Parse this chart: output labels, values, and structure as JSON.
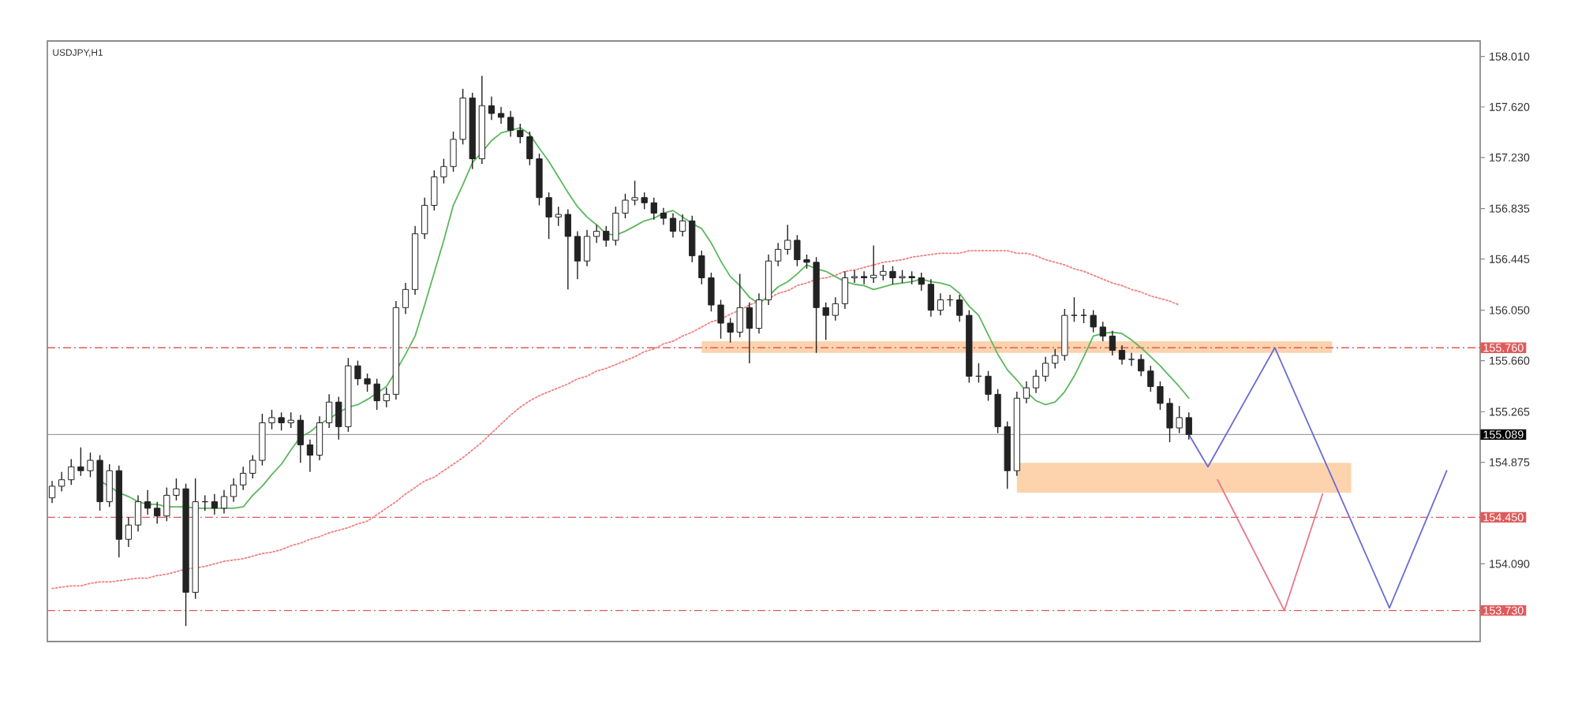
{
  "chart_data": {
    "type": "candlestick",
    "title": "USDJPY,H1",
    "color": "#222222",
    "categories": [
      null,
      null,
      null,
      null,
      null,
      null,
      null,
      null,
      null,
      null,
      null,
      null,
      null,
      null,
      null,
      null,
      null,
      null,
      null,
      null,
      null,
      null,
      null,
      null,
      null,
      null,
      null,
      null,
      null,
      null,
      null,
      null,
      null,
      null,
      null,
      null,
      null,
      null,
      null,
      null,
      null,
      null,
      null,
      null,
      null,
      null,
      null,
      null,
      null,
      null,
      null,
      null,
      null,
      null,
      null,
      null,
      null,
      null,
      null,
      null,
      null,
      null,
      null,
      null,
      null,
      null,
      null,
      null,
      null,
      null,
      null,
      null,
      null,
      null,
      null,
      null,
      null,
      null,
      null,
      null,
      null,
      null,
      null,
      null,
      null,
      null,
      null,
      null,
      null,
      null,
      null,
      null,
      null,
      null,
      null,
      null,
      null,
      null,
      null,
      null,
      null,
      null,
      null,
      null,
      null,
      null,
      null,
      null,
      null,
      null,
      null,
      null,
      null,
      null,
      null,
      null,
      null,
      null,
      null,
      null,
      null,
      null,
      null,
      null,
      null,
      null,
      null,
      null,
      null,
      null,
      null,
      null,
      null,
      null,
      null,
      null,
      null,
      null,
      null,
      null,
      null,
      null,
      null,
      null,
      null,
      null,
      null,
      null,
      null,
      null
    ],
    "ohlc": [
      [
        154.6,
        154.73,
        154.56,
        154.69
      ],
      [
        154.69,
        154.8,
        154.65,
        154.74
      ],
      [
        154.74,
        154.9,
        154.7,
        154.84
      ],
      [
        154.84,
        154.99,
        154.77,
        154.81
      ],
      [
        154.81,
        154.95,
        154.76,
        154.89
      ],
      [
        154.89,
        154.93,
        154.5,
        154.57
      ],
      [
        154.57,
        154.86,
        154.53,
        154.81
      ],
      [
        154.81,
        154.85,
        154.14,
        154.28
      ],
      [
        154.28,
        154.45,
        154.22,
        154.39
      ],
      [
        154.39,
        154.62,
        154.34,
        154.57
      ],
      [
        154.57,
        154.66,
        154.47,
        154.52
      ],
      [
        154.52,
        154.57,
        154.4,
        154.46
      ],
      [
        154.46,
        154.68,
        154.42,
        154.62
      ],
      [
        154.62,
        154.75,
        154.58,
        154.67
      ],
      [
        154.67,
        154.71,
        153.61,
        153.87
      ],
      [
        153.87,
        154.75,
        153.82,
        154.57
      ],
      [
        154.57,
        154.62,
        154.5,
        154.57
      ],
      [
        154.57,
        154.63,
        154.47,
        154.52
      ],
      [
        154.52,
        154.66,
        154.48,
        154.61
      ],
      [
        154.61,
        154.75,
        154.57,
        154.7
      ],
      [
        154.7,
        154.84,
        154.66,
        154.79
      ],
      [
        154.79,
        154.93,
        154.75,
        154.89
      ],
      [
        154.89,
        155.25,
        154.85,
        155.18
      ],
      [
        155.18,
        155.28,
        155.13,
        155.22
      ],
      [
        155.22,
        155.26,
        155.12,
        155.18
      ],
      [
        155.18,
        155.26,
        155.14,
        155.2
      ],
      [
        155.2,
        155.24,
        154.87,
        155.01
      ],
      [
        155.01,
        155.05,
        154.8,
        154.93
      ],
      [
        154.93,
        155.23,
        154.89,
        155.18
      ],
      [
        155.18,
        155.4,
        155.14,
        155.34
      ],
      [
        155.34,
        155.38,
        155.05,
        155.15
      ],
      [
        155.15,
        155.68,
        155.11,
        155.62
      ],
      [
        155.62,
        155.66,
        155.47,
        155.52
      ],
      [
        155.52,
        155.56,
        155.42,
        155.48
      ],
      [
        155.48,
        155.52,
        155.28,
        155.35
      ],
      [
        155.35,
        155.45,
        155.3,
        155.4
      ],
      [
        155.4,
        156.12,
        155.36,
        156.07
      ],
      [
        156.07,
        156.26,
        156.02,
        156.21
      ],
      [
        156.21,
        156.7,
        156.17,
        156.64
      ],
      [
        156.64,
        156.92,
        156.6,
        156.86
      ],
      [
        156.86,
        157.13,
        156.82,
        157.08
      ],
      [
        157.08,
        157.22,
        157.03,
        157.16
      ],
      [
        157.16,
        157.43,
        157.12,
        157.37
      ],
      [
        157.37,
        157.76,
        157.33,
        157.69
      ],
      [
        157.69,
        157.73,
        157.14,
        157.22
      ],
      [
        157.22,
        157.86,
        157.18,
        157.63
      ],
      [
        157.63,
        157.7,
        157.52,
        157.57
      ],
      [
        157.57,
        157.62,
        157.49,
        157.54
      ],
      [
        157.54,
        157.59,
        157.39,
        157.44
      ],
      [
        157.44,
        157.49,
        157.34,
        157.39
      ],
      [
        157.39,
        157.43,
        157.17,
        157.22
      ],
      [
        157.22,
        157.26,
        156.86,
        156.92
      ],
      [
        156.92,
        156.96,
        156.6,
        156.77
      ],
      [
        156.77,
        156.85,
        156.7,
        156.79
      ],
      [
        156.79,
        156.83,
        156.21,
        156.62
      ],
      [
        156.62,
        156.66,
        156.29,
        156.43
      ],
      [
        156.43,
        156.67,
        156.39,
        156.62
      ],
      [
        156.62,
        156.71,
        156.57,
        156.66
      ],
      [
        156.66,
        156.7,
        156.54,
        156.59
      ],
      [
        156.59,
        156.85,
        156.55,
        156.8
      ],
      [
        156.8,
        156.95,
        156.76,
        156.9
      ],
      [
        156.9,
        157.05,
        156.86,
        156.92
      ],
      [
        156.92,
        156.96,
        156.83,
        156.88
      ],
      [
        156.88,
        156.92,
        156.75,
        156.8
      ],
      [
        156.8,
        156.84,
        156.71,
        156.76
      ],
      [
        156.76,
        156.8,
        156.61,
        156.66
      ],
      [
        156.66,
        156.79,
        156.62,
        156.74
      ],
      [
        156.74,
        156.78,
        156.42,
        156.47
      ],
      [
        156.47,
        156.51,
        156.25,
        156.3
      ],
      [
        156.3,
        156.34,
        156.04,
        156.09
      ],
      [
        156.09,
        156.13,
        155.83,
        155.95
      ],
      [
        155.95,
        155.99,
        155.8,
        155.88
      ],
      [
        155.88,
        156.33,
        155.84,
        156.07
      ],
      [
        156.07,
        156.11,
        155.64,
        155.91
      ],
      [
        155.91,
        156.18,
        155.87,
        156.13
      ],
      [
        156.13,
        156.48,
        156.09,
        156.43
      ],
      [
        156.43,
        156.57,
        156.39,
        156.52
      ],
      [
        156.52,
        156.71,
        156.48,
        156.59
      ],
      [
        156.59,
        156.63,
        156.39,
        156.44
      ],
      [
        156.44,
        156.48,
        156.37,
        156.42
      ],
      [
        156.42,
        156.46,
        155.72,
        156.07
      ],
      [
        156.07,
        156.11,
        155.82,
        156.01
      ],
      [
        156.01,
        156.15,
        155.97,
        156.1
      ],
      [
        156.1,
        156.35,
        156.06,
        156.3
      ],
      [
        156.3,
        156.36,
        156.26,
        156.31
      ],
      [
        156.31,
        156.35,
        156.25,
        156.3
      ],
      [
        156.3,
        156.55,
        156.26,
        156.32
      ],
      [
        156.32,
        156.4,
        156.28,
        156.35
      ],
      [
        156.35,
        156.39,
        156.25,
        156.3
      ],
      [
        156.3,
        156.36,
        156.26,
        156.31
      ],
      [
        156.31,
        156.35,
        156.25,
        156.3
      ],
      [
        156.3,
        156.34,
        156.2,
        156.25
      ],
      [
        156.25,
        156.29,
        156.0,
        156.05
      ],
      [
        156.05,
        156.18,
        156.01,
        156.13
      ],
      [
        156.13,
        156.17,
        156.08,
        156.13
      ],
      [
        156.13,
        156.17,
        155.96,
        156.01
      ],
      [
        156.01,
        156.05,
        155.49,
        155.54
      ],
      [
        155.54,
        155.64,
        155.49,
        155.54
      ],
      [
        155.54,
        155.58,
        155.35,
        155.4
      ],
      [
        155.4,
        155.44,
        155.1,
        155.15
      ],
      [
        155.15,
        155.19,
        154.67,
        154.81
      ],
      [
        154.81,
        155.42,
        154.77,
        155.37
      ],
      [
        155.37,
        155.5,
        155.33,
        155.45
      ],
      [
        155.45,
        155.59,
        155.41,
        155.54
      ],
      [
        155.54,
        155.69,
        155.5,
        155.64
      ],
      [
        155.64,
        155.75,
        155.6,
        155.7
      ],
      [
        155.7,
        156.06,
        155.66,
        156.01
      ],
      [
        156.01,
        156.15,
        155.96,
        156.01
      ],
      [
        156.01,
        156.06,
        155.95,
        156.01
      ],
      [
        156.01,
        156.05,
        155.88,
        155.92
      ],
      [
        155.92,
        155.96,
        155.81,
        155.85
      ],
      [
        155.85,
        155.89,
        155.7,
        155.74
      ],
      [
        155.74,
        155.78,
        155.63,
        155.67
      ],
      [
        155.67,
        155.72,
        155.62,
        155.67
      ],
      [
        155.67,
        155.71,
        155.54,
        155.58
      ],
      [
        155.58,
        155.62,
        155.42,
        155.46
      ],
      [
        155.46,
        155.5,
        155.28,
        155.33
      ],
      [
        155.33,
        155.37,
        155.03,
        155.14
      ],
      [
        155.14,
        155.31,
        155.1,
        155.22
      ],
      [
        155.22,
        155.26,
        155.05,
        155.09
      ],
      null,
      null,
      null,
      null,
      null,
      null,
      null,
      null,
      null,
      null,
      null,
      null,
      null,
      null,
      null,
      null,
      null,
      null,
      null,
      null,
      null,
      null,
      null,
      null,
      null,
      null,
      null,
      null,
      null,
      null
    ],
    "series": [
      {
        "type": "area",
        "color": "#fcd3ad",
        "values": [
          null,
          null,
          null,
          null,
          null,
          null,
          null,
          null,
          null,
          null,
          null,
          null,
          null,
          null,
          null,
          null,
          null,
          null,
          null,
          null,
          null,
          null,
          null,
          null,
          null,
          null,
          null,
          null,
          null,
          null,
          null,
          null,
          null,
          null,
          null,
          null,
          null,
          null,
          null,
          null,
          null,
          null,
          null,
          null,
          null,
          null,
          null,
          null,
          null,
          null,
          null,
          null,
          null,
          null,
          null,
          null,
          null,
          null,
          null,
          null,
          null,
          null,
          null,
          null,
          null,
          null,
          null,
          null,
          null,
          null,
          null,
          null,
          null,
          null,
          null,
          null,
          null,
          null,
          null,
          null,
          null,
          null,
          null,
          null,
          null,
          null,
          null,
          null,
          null,
          null,
          null,
          null,
          null,
          null,
          null,
          null,
          null,
          null,
          null,
          null,
          null,
          null,
          null,
          null,
          null,
          null,
          null,
          null,
          null,
          null,
          null,
          null,
          null,
          null,
          null,
          null,
          null,
          null,
          null,
          null,
          null,
          null,
          null,
          null,
          null,
          null,
          null,
          null,
          null,
          null,
          null,
          null,
          null,
          null,
          null,
          null,
          null,
          null,
          null,
          null,
          null,
          null,
          null,
          null,
          null,
          null,
          null,
          null,
          null,
          null
        ],
        "upper": [
          null,
          null,
          null,
          null,
          null,
          null,
          null,
          null,
          null,
          null,
          null,
          null,
          null,
          null,
          null,
          null,
          null,
          null,
          null,
          null,
          null,
          null,
          null,
          null,
          null,
          null,
          null,
          null,
          null,
          null,
          null,
          null,
          null,
          null,
          null,
          null,
          null,
          null,
          null,
          null,
          null,
          null,
          null,
          null,
          null,
          null,
          null,
          null,
          null,
          null,
          null,
          null,
          null,
          null,
          null,
          null,
          null,
          null,
          null,
          null,
          null,
          null,
          null,
          null,
          null,
          null,
          null,
          null,
          155.81,
          null,
          null,
          null,
          null,
          null,
          null,
          null,
          null,
          null,
          null,
          null,
          null,
          null,
          null,
          null,
          null,
          null,
          null,
          null,
          null,
          null,
          null,
          null,
          null,
          null,
          null,
          null,
          null,
          null,
          null,
          null,
          null,
          null,
          null,
          null,
          null,
          null,
          null,
          null,
          null,
          null,
          null,
          null,
          null,
          null,
          null,
          null,
          null,
          null,
          null,
          null,
          null,
          null,
          null,
          null,
          null,
          null,
          null,
          null,
          null,
          null,
          null,
          null,
          null,
          null,
          155.81,
          null,
          null,
          null,
          null,
          null,
          null,
          null,
          null,
          null,
          null,
          null,
          null,
          null,
          null,
          null
        ],
        "lower": [
          null,
          null,
          null,
          null,
          null,
          null,
          null,
          null,
          null,
          null,
          null,
          null,
          null,
          null,
          null,
          null,
          null,
          null,
          null,
          null,
          null,
          null,
          null,
          null,
          null,
          null,
          null,
          null,
          null,
          null,
          null,
          null,
          null,
          null,
          null,
          null,
          null,
          null,
          null,
          null,
          null,
          null,
          null,
          null,
          null,
          null,
          null,
          null,
          null,
          null,
          null,
          null,
          null,
          null,
          null,
          null,
          null,
          null,
          null,
          null,
          null,
          null,
          null,
          null,
          null,
          null,
          null,
          null,
          155.72,
          null,
          null,
          null,
          null,
          null,
          null,
          null,
          null,
          null,
          null,
          null,
          null,
          null,
          null,
          null,
          null,
          null,
          null,
          null,
          null,
          null,
          null,
          null,
          null,
          null,
          null,
          null,
          null,
          null,
          null,
          null,
          null,
          null,
          null,
          null,
          null,
          null,
          null,
          null,
          null,
          null,
          null,
          null,
          null,
          null,
          null,
          null,
          null,
          null,
          null,
          null,
          null,
          null,
          null,
          null,
          null,
          null,
          null,
          null,
          null,
          null,
          null,
          null,
          null,
          null,
          155.72,
          null,
          null,
          null,
          null,
          null,
          null,
          null,
          null,
          null,
          null,
          null,
          null,
          null,
          null,
          null
        ]
      },
      {
        "type": "area",
        "color": "#fcd3ad",
        "values": [
          null,
          null,
          null,
          null,
          null,
          null,
          null,
          null,
          null,
          null,
          null,
          null,
          null,
          null,
          null,
          null,
          null,
          null,
          null,
          null,
          null,
          null,
          null,
          null,
          null,
          null,
          null,
          null,
          null,
          null,
          null,
          null,
          null,
          null,
          null,
          null,
          null,
          null,
          null,
          null,
          null,
          null,
          null,
          null,
          null,
          null,
          null,
          null,
          null,
          null,
          null,
          null,
          null,
          null,
          null,
          null,
          null,
          null,
          null,
          null,
          null,
          null,
          null,
          null,
          null,
          null,
          null,
          null,
          null,
          null,
          null,
          null,
          null,
          null,
          null,
          null,
          null,
          null,
          null,
          null,
          null,
          null,
          null,
          null,
          null,
          null,
          null,
          null,
          null,
          null,
          null,
          null,
          null,
          null,
          null,
          null,
          null,
          null,
          null,
          null,
          null,
          null,
          null,
          null,
          null,
          null,
          null,
          null,
          null,
          null,
          null,
          null,
          null,
          null,
          null,
          null,
          null,
          null,
          null,
          null,
          null,
          null,
          null,
          null,
          null,
          null,
          null,
          null,
          null,
          null,
          null,
          null,
          null,
          null,
          null,
          null,
          null,
          null,
          null,
          null,
          null,
          null,
          null,
          null,
          null,
          null,
          null,
          null,
          null,
          null
        ],
        "upper": [
          null,
          null,
          null,
          null,
          null,
          null,
          null,
          null,
          null,
          null,
          null,
          null,
          null,
          null,
          null,
          null,
          null,
          null,
          null,
          null,
          null,
          null,
          null,
          null,
          null,
          null,
          null,
          null,
          null,
          null,
          null,
          null,
          null,
          null,
          null,
          null,
          null,
          null,
          null,
          null,
          null,
          null,
          null,
          null,
          null,
          null,
          null,
          null,
          null,
          null,
          null,
          null,
          null,
          null,
          null,
          null,
          null,
          null,
          null,
          null,
          null,
          null,
          null,
          null,
          null,
          null,
          null,
          null,
          null,
          null,
          null,
          null,
          null,
          null,
          null,
          null,
          null,
          null,
          null,
          null,
          null,
          null,
          null,
          null,
          null,
          null,
          null,
          null,
          null,
          null,
          null,
          null,
          null,
          null,
          null,
          null,
          null,
          null,
          null,
          null,
          null,
          154.87,
          null,
          null,
          null,
          null,
          null,
          null,
          null,
          null,
          null,
          null,
          null,
          null,
          null,
          null,
          null,
          null,
          null,
          null,
          null,
          null,
          null,
          null,
          null,
          null,
          null,
          null,
          null,
          null,
          null,
          null,
          null,
          null,
          null,
          null,
          154.87,
          null,
          null,
          null,
          null,
          null,
          null,
          null,
          null,
          null,
          null,
          null,
          null,
          null
        ],
        "lower": [
          null,
          null,
          null,
          null,
          null,
          null,
          null,
          null,
          null,
          null,
          null,
          null,
          null,
          null,
          null,
          null,
          null,
          null,
          null,
          null,
          null,
          null,
          null,
          null,
          null,
          null,
          null,
          null,
          null,
          null,
          null,
          null,
          null,
          null,
          null,
          null,
          null,
          null,
          null,
          null,
          null,
          null,
          null,
          null,
          null,
          null,
          null,
          null,
          null,
          null,
          null,
          null,
          null,
          null,
          null,
          null,
          null,
          null,
          null,
          null,
          null,
          null,
          null,
          null,
          null,
          null,
          null,
          null,
          null,
          null,
          null,
          null,
          null,
          null,
          null,
          null,
          null,
          null,
          null,
          null,
          null,
          null,
          null,
          null,
          null,
          null,
          null,
          null,
          null,
          null,
          null,
          null,
          null,
          null,
          null,
          null,
          null,
          null,
          null,
          null,
          null,
          154.64,
          null,
          null,
          null,
          null,
          null,
          null,
          null,
          null,
          null,
          null,
          null,
          null,
          null,
          null,
          null,
          null,
          null,
          null,
          null,
          null,
          null,
          null,
          null,
          null,
          null,
          null,
          null,
          null,
          null,
          null,
          null,
          null,
          null,
          null,
          154.64,
          null,
          null,
          null,
          null,
          null,
          null,
          null,
          null,
          null,
          null,
          null,
          null,
          null
        ]
      },
      {
        "type": "line",
        "color": "#f08080",
        "line_style": "dotted",
        "values": [
          153.9,
          153.91,
          153.92,
          153.92,
          153.94,
          153.95,
          153.95,
          153.96,
          153.97,
          153.98,
          153.98,
          154.0,
          154.01,
          154.03,
          154.05,
          154.06,
          154.07,
          154.09,
          154.11,
          154.12,
          154.13,
          154.15,
          154.17,
          154.18,
          154.2,
          154.23,
          154.25,
          154.28,
          154.3,
          154.33,
          154.35,
          154.37,
          154.4,
          154.42,
          154.47,
          154.52,
          154.57,
          154.63,
          154.68,
          154.73,
          154.76,
          154.81,
          154.86,
          154.91,
          154.97,
          155.03,
          155.1,
          155.17,
          155.24,
          155.3,
          155.35,
          155.39,
          155.42,
          155.45,
          155.48,
          155.52,
          155.54,
          155.58,
          155.6,
          155.63,
          155.66,
          155.69,
          155.73,
          155.75,
          155.79,
          155.81,
          155.85,
          155.88,
          155.92,
          155.96,
          155.98,
          156.02,
          156.05,
          156.09,
          156.12,
          156.14,
          156.18,
          156.2,
          156.24,
          156.26,
          156.29,
          156.3,
          156.32,
          156.35,
          156.36,
          156.38,
          156.4,
          156.42,
          156.43,
          156.44,
          156.46,
          156.47,
          156.48,
          156.49,
          156.49,
          156.49,
          156.51,
          156.51,
          156.51,
          156.51,
          156.51,
          156.49,
          156.49,
          156.47,
          156.44,
          156.42,
          156.4,
          156.37,
          156.35,
          156.32,
          156.29,
          156.26,
          156.24,
          156.21,
          156.19,
          156.16,
          156.14,
          156.12,
          156.09,
          null,
          null,
          null,
          null,
          null,
          null,
          null,
          null,
          null,
          null,
          null,
          null,
          null,
          null,
          null,
          null,
          null,
          null,
          null,
          null,
          null,
          null,
          null,
          null,
          null,
          null,
          null,
          null,
          null,
          null,
          null
        ]
      },
      {
        "type": "line",
        "color": "#5cb85c",
        "line_style": "solid",
        "values": [
          null,
          null,
          null,
          null,
          null,
          154.73,
          154.69,
          154.64,
          154.61,
          154.57,
          154.55,
          154.55,
          154.53,
          154.53,
          154.53,
          154.52,
          154.52,
          154.52,
          154.52,
          154.52,
          154.53,
          154.62,
          154.69,
          154.78,
          154.86,
          154.97,
          155.07,
          155.11,
          155.17,
          155.21,
          155.26,
          155.3,
          155.32,
          155.36,
          155.41,
          155.46,
          155.58,
          155.71,
          155.85,
          156.09,
          156.34,
          156.59,
          156.86,
          157.02,
          157.19,
          157.27,
          157.36,
          157.42,
          157.44,
          157.46,
          157.41,
          157.3,
          157.2,
          157.08,
          156.96,
          156.85,
          156.77,
          156.71,
          156.64,
          156.63,
          156.66,
          156.7,
          156.74,
          156.76,
          156.8,
          156.82,
          156.77,
          156.72,
          156.68,
          156.57,
          156.43,
          156.31,
          156.24,
          156.15,
          156.1,
          156.16,
          156.23,
          156.27,
          156.33,
          156.4,
          156.37,
          156.35,
          156.31,
          156.27,
          156.25,
          156.24,
          156.21,
          156.23,
          156.25,
          156.26,
          156.27,
          156.29,
          156.27,
          156.26,
          156.24,
          156.18,
          156.08,
          156.01,
          155.86,
          155.71,
          155.59,
          155.51,
          155.42,
          155.35,
          155.32,
          155.34,
          155.42,
          155.54,
          155.69,
          155.85,
          155.87,
          155.88,
          155.87,
          155.82,
          155.76,
          155.69,
          155.62,
          155.54,
          155.46,
          155.37,
          null,
          null,
          null,
          null,
          null,
          null,
          null,
          null,
          null,
          null,
          null,
          null,
          null,
          null,
          null,
          null,
          null,
          null,
          null,
          null,
          null,
          null,
          null,
          null,
          null,
          null,
          null,
          null,
          null,
          null
        ]
      },
      {
        "type": "line",
        "color": "#6b6bd6",
        "line_style": "solid",
        "values": [
          null,
          null,
          null,
          null,
          null,
          null,
          null,
          null,
          null,
          null,
          null,
          null,
          null,
          null,
          null,
          null,
          null,
          null,
          null,
          null,
          null,
          null,
          null,
          null,
          null,
          null,
          null,
          null,
          null,
          null,
          null,
          null,
          null,
          null,
          null,
          null,
          null,
          null,
          null,
          null,
          null,
          null,
          null,
          null,
          null,
          null,
          null,
          null,
          null,
          null,
          null,
          null,
          null,
          null,
          null,
          null,
          null,
          null,
          null,
          null,
          null,
          null,
          null,
          null,
          null,
          null,
          null,
          null,
          null,
          null,
          null,
          null,
          null,
          null,
          null,
          null,
          null,
          null,
          null,
          null,
          null,
          null,
          null,
          null,
          null,
          null,
          null,
          null,
          null,
          null,
          null,
          null,
          null,
          null,
          null,
          null,
          null,
          null,
          null,
          null,
          null,
          null,
          null,
          null,
          null,
          null,
          null,
          null,
          null,
          null,
          null,
          null,
          null,
          null,
          null,
          null,
          null,
          null,
          null,
          155.09,
          null,
          154.84,
          null,
          null,
          null,
          null,
          null,
          null,
          155.76,
          null,
          null,
          null,
          null,
          null,
          null,
          null,
          null,
          null,
          null,
          null,
          153.75,
          null,
          null,
          null,
          null,
          null,
          154.81,
          null,
          null,
          null
        ]
      },
      {
        "type": "line",
        "color": "#e8788a",
        "line_style": "solid",
        "values": [
          null,
          null,
          null,
          null,
          null,
          null,
          null,
          null,
          null,
          null,
          null,
          null,
          null,
          null,
          null,
          null,
          null,
          null,
          null,
          null,
          null,
          null,
          null,
          null,
          null,
          null,
          null,
          null,
          null,
          null,
          null,
          null,
          null,
          null,
          null,
          null,
          null,
          null,
          null,
          null,
          null,
          null,
          null,
          null,
          null,
          null,
          null,
          null,
          null,
          null,
          null,
          null,
          null,
          null,
          null,
          null,
          null,
          null,
          null,
          null,
          null,
          null,
          null,
          null,
          null,
          null,
          null,
          null,
          null,
          null,
          null,
          null,
          null,
          null,
          null,
          null,
          null,
          null,
          null,
          null,
          null,
          null,
          null,
          null,
          null,
          null,
          null,
          null,
          null,
          null,
          null,
          null,
          null,
          null,
          null,
          null,
          null,
          null,
          null,
          null,
          null,
          null,
          null,
          null,
          null,
          null,
          null,
          null,
          null,
          null,
          null,
          null,
          null,
          null,
          null,
          null,
          null,
          null,
          null,
          null,
          null,
          null,
          154.74,
          null,
          null,
          null,
          null,
          null,
          null,
          153.73,
          null,
          null,
          null,
          154.63,
          null,
          null,
          null,
          null,
          null,
          null,
          null,
          null,
          null,
          null,
          null,
          null,
          null,
          null,
          null,
          null
        ]
      }
    ],
    "ylim": [
      153.49,
      158.13
    ],
    "yticks": [
      {
        "value": 158.01,
        "label": "158.010"
      },
      {
        "value": 157.62,
        "label": "157.620"
      },
      {
        "value": 157.23,
        "label": "157.230"
      },
      156.835,
      156.445,
      {
        "value": 156.05,
        "label": "156.050"
      },
      {
        "value": 155.66,
        "label": "155.660"
      },
      155.265,
      154.875,
      {
        "value": 154.09,
        "label": "154.090"
      }
    ],
    "ref_lines": [
      {
        "axis": "y",
        "value": 155.76,
        "label": "155.760",
        "color": "#e05a5a",
        "line_style": "dashed"
      },
      {
        "axis": "y",
        "value": 154.45,
        "label": "154.450",
        "color": "#e05a5a",
        "line_style": "dashed"
      },
      {
        "axis": "y",
        "value": 153.73,
        "label": "153.730",
        "color": "#e05a5a",
        "line_style": "dashed"
      },
      {
        "axis": "y",
        "value": 155.089,
        "label": "155.089",
        "color": "#a0a0a0",
        "line_style": "solid"
      }
    ],
    "tick_labels": "y"
  }
}
